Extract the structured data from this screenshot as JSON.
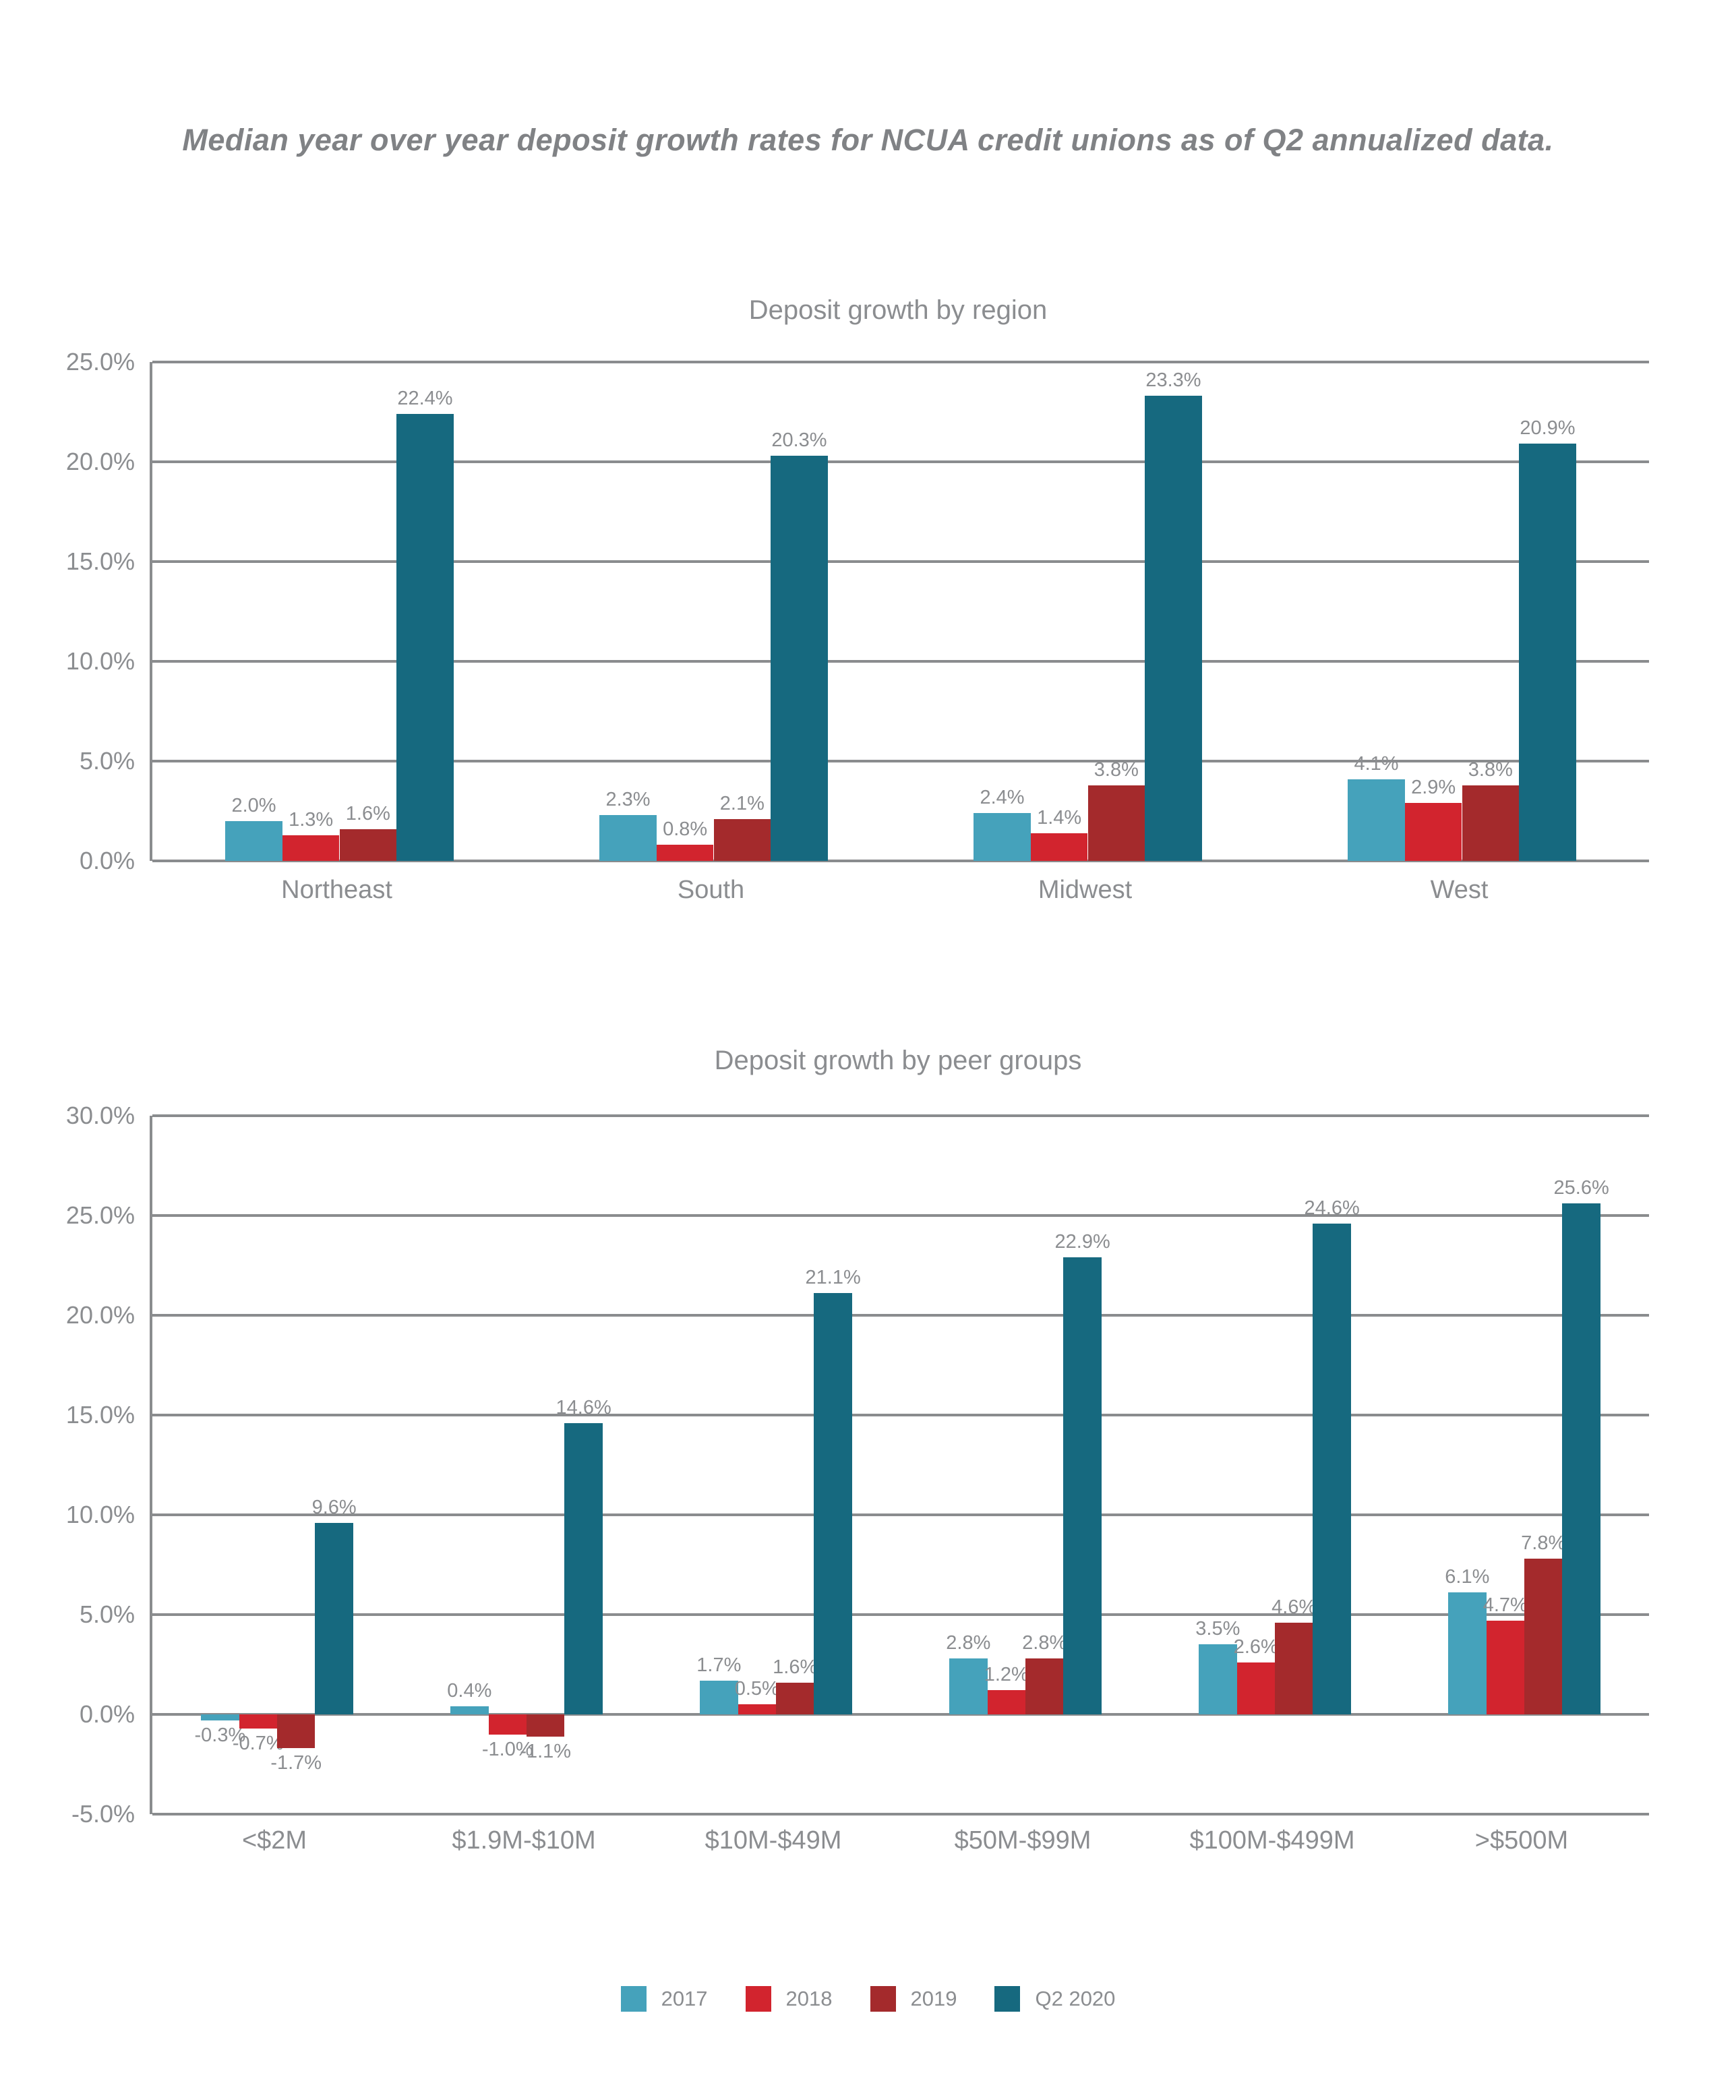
{
  "page": {
    "main_title": "Median year over year deposit growth rates for NCUA credit unions as of Q2 annualized data."
  },
  "colors": {
    "grid": "#8A8C8E",
    "tick_text": "#8B8D90",
    "title_text": "#808285",
    "series_2017": "#45A2BB",
    "series_2018": "#D2242E",
    "series_2019": "#A42A2C",
    "series_q2_2020": "#16697F"
  },
  "chart_data": [
    {
      "type": "bar",
      "title": "Deposit growth by region",
      "categories": [
        "Northeast",
        "South",
        "Midwest",
        "West"
      ],
      "series": [
        {
          "name": "2017",
          "color": "#45A2BB",
          "values": [
            2.0,
            2.3,
            2.4,
            4.1
          ]
        },
        {
          "name": "2018",
          "color": "#D2242E",
          "values": [
            1.3,
            0.8,
            1.4,
            2.9
          ]
        },
        {
          "name": "2019",
          "color": "#A42A2C",
          "values": [
            1.6,
            2.1,
            3.8,
            3.8
          ]
        },
        {
          "name": "Q2 2020",
          "color": "#16697F",
          "values": [
            22.4,
            20.3,
            23.3,
            20.9
          ]
        }
      ],
      "ylim": [
        0,
        25
      ],
      "ytick_values": [
        25,
        20,
        15,
        10,
        5,
        0
      ],
      "ytick_labels": [
        "25.0%",
        "20.0%",
        "15.0%",
        "10.0%",
        "5.0%",
        "0.0%"
      ],
      "grid": true,
      "value_label_format": "percent_1dp"
    },
    {
      "type": "bar",
      "title": "Deposit growth by peer groups",
      "categories": [
        "<$2M",
        "$1.9M-$10M",
        "$10M-$49M",
        "$50M-$99M",
        "$100M-$499M",
        ">$500M"
      ],
      "series": [
        {
          "name": "2017",
          "color": "#45A2BB",
          "values": [
            -0.3,
            0.4,
            1.7,
            2.8,
            3.5,
            6.1
          ]
        },
        {
          "name": "2018",
          "color": "#D2242E",
          "values": [
            -0.7,
            -1.0,
            0.5,
            1.2,
            2.6,
            4.7
          ]
        },
        {
          "name": "2019",
          "color": "#A42A2C",
          "values": [
            -1.7,
            -1.1,
            1.6,
            2.8,
            4.6,
            7.8
          ]
        },
        {
          "name": "Q2 2020",
          "color": "#16697F",
          "values": [
            9.6,
            14.6,
            21.1,
            22.9,
            24.6,
            25.6
          ]
        }
      ],
      "ylim": [
        -5,
        30
      ],
      "ytick_values": [
        30,
        25,
        20,
        15,
        10,
        5,
        0,
        -5
      ],
      "ytick_labels": [
        "30.0%",
        "25.0%",
        "20.0%",
        "15.0%",
        "10.0%",
        "5.0%",
        "0.0%",
        "-5.0%"
      ],
      "grid": true,
      "value_label_format": "percent_1dp"
    }
  ],
  "legend": {
    "items": [
      {
        "label": "2017",
        "color": "#45A2BB"
      },
      {
        "label": "2018",
        "color": "#D2242E"
      },
      {
        "label": "2019",
        "color": "#A42A2C"
      },
      {
        "label": "Q2 2020",
        "color": "#16697F"
      }
    ]
  }
}
